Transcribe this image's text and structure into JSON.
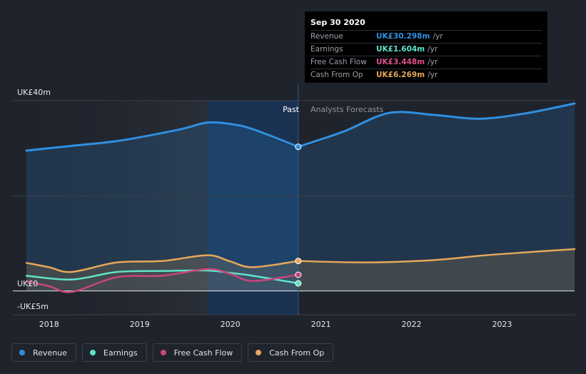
{
  "chart_data": {
    "type": "line",
    "y_axis": {
      "top_label": "UK£40m",
      "zero_label": "UK£0",
      "bottom_label": "-UK£5m",
      "ylim": [
        -5,
        40
      ]
    },
    "x_axis": {
      "ticks": [
        "2018",
        "2019",
        "2020",
        "2021",
        "2022",
        "2023"
      ],
      "xlim": [
        2017.6,
        2023.8
      ]
    },
    "past_label": "Past",
    "forecast_label": "Analysts Forecasts",
    "divider_x": 2020.75,
    "highlight_start_x": 2019.75,
    "series": [
      {
        "name": "Revenue",
        "color": "#2f8fe0",
        "fill": true,
        "past": [
          [
            2017.75,
            29.5
          ],
          [
            2018.25,
            30.5
          ],
          [
            2018.75,
            31.5
          ],
          [
            2019.25,
            33.2
          ],
          [
            2019.5,
            34.2
          ],
          [
            2019.75,
            35.4
          ],
          [
            2020.0,
            35.1
          ],
          [
            2020.25,
            34.0
          ],
          [
            2020.75,
            30.3
          ]
        ],
        "forecast": [
          [
            2020.75,
            30.3
          ],
          [
            2021.25,
            33.5
          ],
          [
            2021.75,
            37.4
          ],
          [
            2022.25,
            37.0
          ],
          [
            2022.75,
            36.2
          ],
          [
            2023.25,
            37.3
          ],
          [
            2023.8,
            39.4
          ]
        ]
      },
      {
        "name": "Cash From Op",
        "color": "#e6a85a",
        "fill": true,
        "past": [
          [
            2017.75,
            5.9
          ],
          [
            2018.0,
            5.0
          ],
          [
            2018.25,
            4.0
          ],
          [
            2018.75,
            6.0
          ],
          [
            2019.25,
            6.3
          ],
          [
            2019.75,
            7.5
          ],
          [
            2020.0,
            6.2
          ],
          [
            2020.25,
            5.0
          ],
          [
            2020.75,
            6.3
          ]
        ],
        "forecast": [
          [
            2020.75,
            6.3
          ],
          [
            2021.5,
            6.0
          ],
          [
            2022.25,
            6.5
          ],
          [
            2022.75,
            7.4
          ],
          [
            2023.25,
            8.1
          ],
          [
            2023.8,
            8.8
          ]
        ]
      },
      {
        "name": "Earnings",
        "color": "#5ee3c9",
        "fill": false,
        "past": [
          [
            2017.75,
            3.2
          ],
          [
            2018.25,
            2.4
          ],
          [
            2018.75,
            4.0
          ],
          [
            2019.25,
            4.2
          ],
          [
            2019.75,
            4.3
          ],
          [
            2020.0,
            3.8
          ],
          [
            2020.25,
            3.2
          ],
          [
            2020.75,
            1.6
          ]
        ],
        "forecast": []
      },
      {
        "name": "Free Cash Flow",
        "color": "#c9457e",
        "fill": false,
        "past": [
          [
            2017.75,
            2.0
          ],
          [
            2018.0,
            1.0
          ],
          [
            2018.25,
            -0.2
          ],
          [
            2018.75,
            2.9
          ],
          [
            2019.25,
            3.2
          ],
          [
            2019.75,
            4.6
          ],
          [
            2020.0,
            3.6
          ],
          [
            2020.25,
            2.1
          ],
          [
            2020.75,
            3.4
          ]
        ],
        "forecast": []
      }
    ]
  },
  "tooltip": {
    "date": "Sep 30 2020",
    "rows": [
      {
        "name": "Revenue",
        "value": "UK£30.298m",
        "unit": "/yr",
        "color": "#2f8fe0"
      },
      {
        "name": "Earnings",
        "value": "UK£1.604m",
        "unit": "/yr",
        "color": "#5ee3c9"
      },
      {
        "name": "Free Cash Flow",
        "value": "UK£3.448m",
        "unit": "/yr",
        "color": "#e0508e"
      },
      {
        "name": "Cash From Op",
        "value": "UK£6.269m",
        "unit": "/yr",
        "color": "#e6a85a"
      }
    ]
  },
  "legend": [
    {
      "label": "Revenue",
      "color": "#2f8fe0"
    },
    {
      "label": "Earnings",
      "color": "#5ee3c9"
    },
    {
      "label": "Free Cash Flow",
      "color": "#c9457e"
    },
    {
      "label": "Cash From Op",
      "color": "#e6a85a"
    }
  ]
}
